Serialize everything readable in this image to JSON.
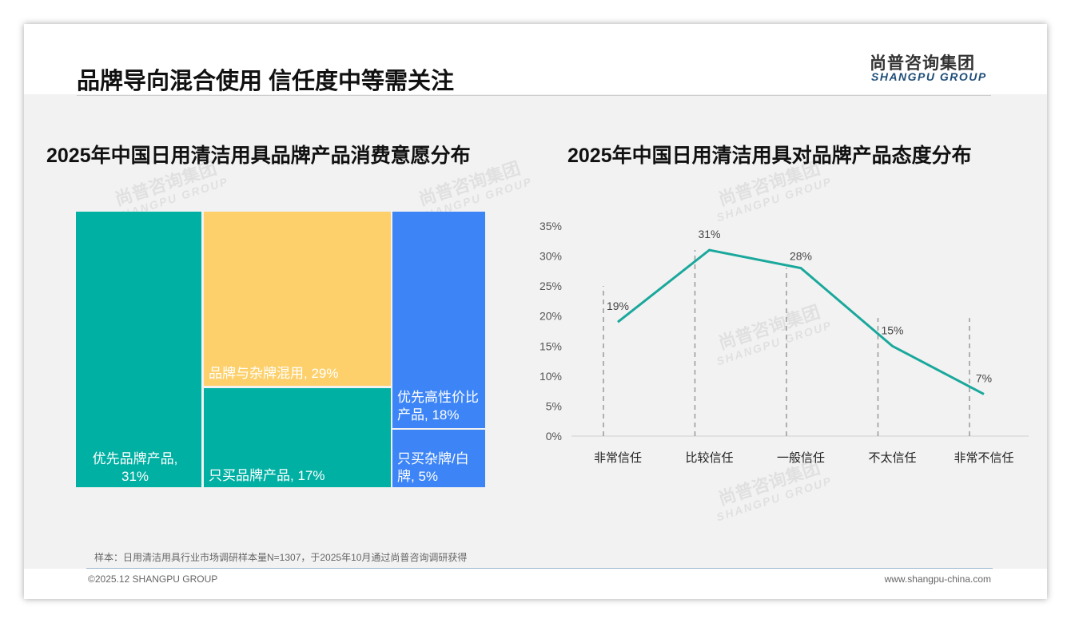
{
  "header": {
    "title": "品牌导向混合使用 信任度中等需关注",
    "logo_cn": "尚普咨询集团",
    "logo_en": "SHANGPU GROUP"
  },
  "watermark": {
    "cn": "尚普咨询集团",
    "en": "SHANGPU GROUP"
  },
  "chart_data": [
    {
      "type": "treemap",
      "title": "2025年中国日用清洁用具品牌产品消费意愿分布",
      "items": [
        {
          "label": "优先品牌产品, 31%",
          "name": "优先品牌产品",
          "value": 31,
          "color": "#00b0a3"
        },
        {
          "label": "品牌与杂牌混用, 29%",
          "name": "品牌与杂牌混用",
          "value": 29,
          "color": "#fdd06b"
        },
        {
          "label": "只买品牌产品, 17%",
          "name": "只买品牌产品",
          "value": 17,
          "color": "#00b0a3"
        },
        {
          "label": "优先高性价比产品, 18%",
          "name": "优先高性价比产品",
          "value": 18,
          "color": "#3d85f7"
        },
        {
          "label": "只买杂牌/白牌, 5%",
          "name": "只买杂牌/白牌",
          "value": 5,
          "color": "#3d85f7"
        }
      ]
    },
    {
      "type": "line",
      "title": "2025年中国日用清洁用具对品牌产品态度分布",
      "categories": [
        "非常信任",
        "比较信任",
        "一般信任",
        "不太信任",
        "非常不信任"
      ],
      "values": [
        19,
        31,
        28,
        15,
        7
      ],
      "data_labels": [
        "19%",
        "31%",
        "28%",
        "15%",
        "7%"
      ],
      "yticks": [
        "0%",
        "5%",
        "10%",
        "15%",
        "20%",
        "25%",
        "30%",
        "35%"
      ],
      "ylim": [
        0,
        35
      ],
      "color": "#1aa89c"
    }
  ],
  "footer": {
    "note": "样本：日用清洁用具行业市场调研样本量N=1307，于2025年10月通过尚普咨询调研获得",
    "copyright": "©2025.12 SHANGPU GROUP",
    "website": "www.shangpu-china.com"
  }
}
